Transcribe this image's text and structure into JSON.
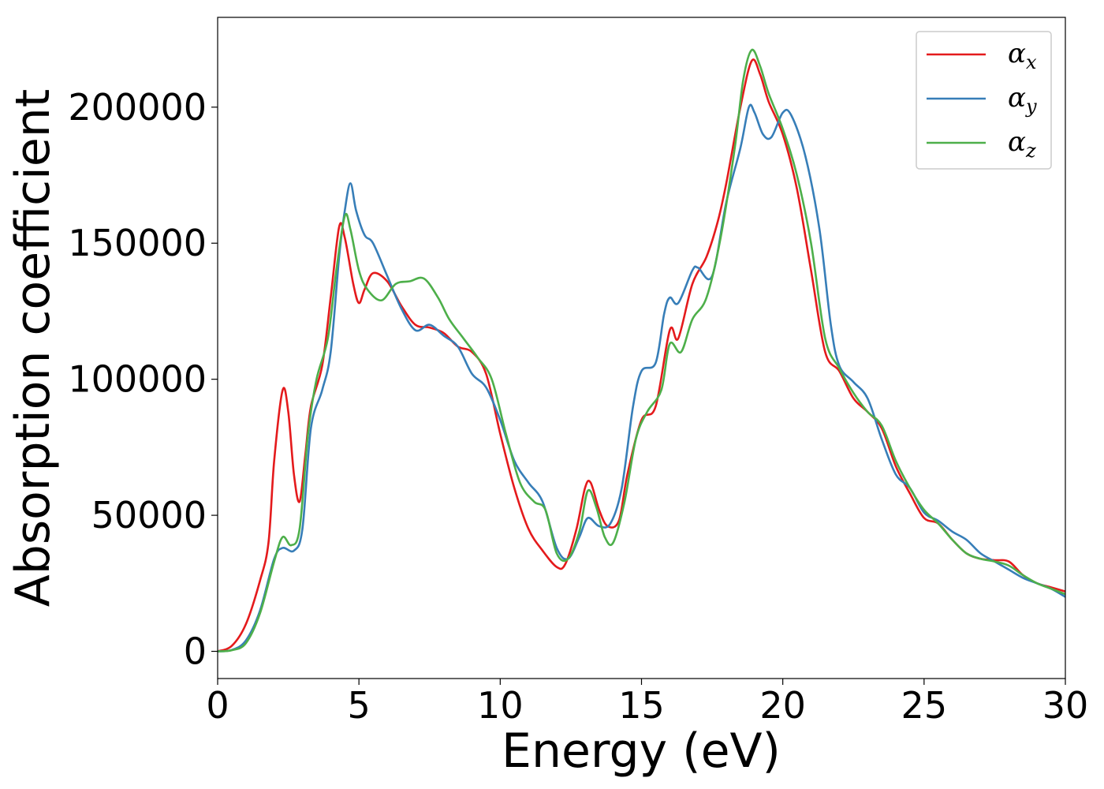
{
  "chart_data": {
    "type": "line",
    "xlabel": "Energy (eV)",
    "ylabel": "Absorption coefficient",
    "xlim": [
      0,
      30
    ],
    "ylim": [
      -10000,
      233000
    ],
    "xticks": [
      "0",
      "5",
      "10",
      "15",
      "20",
      "25",
      "30"
    ],
    "yticks": [
      "0",
      "50000",
      "100000",
      "150000",
      "200000"
    ],
    "grid": false,
    "legend_position": "top-right",
    "series": [
      {
        "name": "α_x",
        "legend_base": "α",
        "legend_sub": "x",
        "color": "#e41a1c",
        "points": [
          [
            0,
            0
          ],
          [
            0.5,
            2000
          ],
          [
            1,
            10000
          ],
          [
            1.5,
            26000
          ],
          [
            1.8,
            40000
          ],
          [
            2.0,
            70000
          ],
          [
            2.3,
            96000
          ],
          [
            2.5,
            88000
          ],
          [
            2.7,
            65000
          ],
          [
            2.9,
            55000
          ],
          [
            3.1,
            72000
          ],
          [
            3.3,
            90000
          ],
          [
            3.7,
            105000
          ],
          [
            4.0,
            130000
          ],
          [
            4.3,
            156000
          ],
          [
            4.5,
            152000
          ],
          [
            4.8,
            135000
          ],
          [
            5.0,
            128000
          ],
          [
            5.2,
            133000
          ],
          [
            5.5,
            139000
          ],
          [
            6.0,
            136000
          ],
          [
            6.5,
            127000
          ],
          [
            7.0,
            120000
          ],
          [
            7.5,
            119000
          ],
          [
            8.0,
            117000
          ],
          [
            8.5,
            112000
          ],
          [
            9.0,
            110000
          ],
          [
            9.5,
            102000
          ],
          [
            10.0,
            80000
          ],
          [
            10.5,
            60000
          ],
          [
            11.0,
            45000
          ],
          [
            11.5,
            37000
          ],
          [
            12.0,
            31000
          ],
          [
            12.3,
            32000
          ],
          [
            12.7,
            45000
          ],
          [
            13.0,
            60000
          ],
          [
            13.2,
            62000
          ],
          [
            13.5,
            52000
          ],
          [
            13.8,
            46000
          ],
          [
            14.2,
            48000
          ],
          [
            14.5,
            65000
          ],
          [
            15.0,
            85000
          ],
          [
            15.5,
            90000
          ],
          [
            16.0,
            118000
          ],
          [
            16.3,
            115000
          ],
          [
            16.8,
            135000
          ],
          [
            17.3,
            145000
          ],
          [
            17.7,
            158000
          ],
          [
            18.0,
            172000
          ],
          [
            18.5,
            200000
          ],
          [
            18.9,
            217000
          ],
          [
            19.2,
            212000
          ],
          [
            19.5,
            202000
          ],
          [
            20.0,
            190000
          ],
          [
            20.5,
            170000
          ],
          [
            21.0,
            140000
          ],
          [
            21.5,
            110000
          ],
          [
            22.0,
            103000
          ],
          [
            22.5,
            93000
          ],
          [
            23.0,
            88000
          ],
          [
            23.5,
            82000
          ],
          [
            24.0,
            68000
          ],
          [
            24.5,
            58000
          ],
          [
            25.0,
            49000
          ],
          [
            25.5,
            47000
          ],
          [
            26.0,
            41000
          ],
          [
            26.5,
            36000
          ],
          [
            27.0,
            34000
          ],
          [
            27.5,
            33500
          ],
          [
            28.0,
            33000
          ],
          [
            28.5,
            28000
          ],
          [
            29.0,
            25000
          ],
          [
            29.5,
            23500
          ],
          [
            30,
            22000
          ]
        ]
      },
      {
        "name": "α_y",
        "legend_base": "α",
        "legend_sub": "y",
        "color": "#377eb8",
        "points": [
          [
            0,
            0
          ],
          [
            0.5,
            500
          ],
          [
            1,
            4000
          ],
          [
            1.5,
            15000
          ],
          [
            2.0,
            34000
          ],
          [
            2.3,
            38000
          ],
          [
            2.7,
            37000
          ],
          [
            3.0,
            45000
          ],
          [
            3.3,
            82000
          ],
          [
            3.7,
            96000
          ],
          [
            4.0,
            110000
          ],
          [
            4.3,
            145000
          ],
          [
            4.5,
            162000
          ],
          [
            4.7,
            172000
          ],
          [
            4.9,
            162000
          ],
          [
            5.2,
            153000
          ],
          [
            5.5,
            150000
          ],
          [
            6.0,
            138000
          ],
          [
            6.5,
            126000
          ],
          [
            7.0,
            118000
          ],
          [
            7.5,
            120000
          ],
          [
            8.0,
            116000
          ],
          [
            8.5,
            112000
          ],
          [
            9.0,
            102000
          ],
          [
            9.5,
            97000
          ],
          [
            10.0,
            85000
          ],
          [
            10.5,
            70000
          ],
          [
            11.0,
            62000
          ],
          [
            11.5,
            55000
          ],
          [
            12.0,
            38000
          ],
          [
            12.4,
            34000
          ],
          [
            12.8,
            42000
          ],
          [
            13.1,
            49000
          ],
          [
            13.5,
            46000
          ],
          [
            13.9,
            47000
          ],
          [
            14.3,
            60000
          ],
          [
            14.7,
            90000
          ],
          [
            15.0,
            103000
          ],
          [
            15.5,
            106000
          ],
          [
            15.8,
            124000
          ],
          [
            16.0,
            130000
          ],
          [
            16.3,
            128000
          ],
          [
            16.8,
            140000
          ],
          [
            17.0,
            141000
          ],
          [
            17.5,
            138000
          ],
          [
            18.0,
            165000
          ],
          [
            18.5,
            185000
          ],
          [
            18.8,
            200000
          ],
          [
            19.0,
            198000
          ],
          [
            19.3,
            190000
          ],
          [
            19.6,
            189000
          ],
          [
            20.0,
            198000
          ],
          [
            20.3,
            197000
          ],
          [
            20.8,
            182000
          ],
          [
            21.3,
            155000
          ],
          [
            21.7,
            120000
          ],
          [
            22.0,
            105000
          ],
          [
            22.5,
            99000
          ],
          [
            23.0,
            93000
          ],
          [
            23.5,
            78000
          ],
          [
            24.0,
            65000
          ],
          [
            24.5,
            60000
          ],
          [
            25.0,
            51000
          ],
          [
            25.5,
            48000
          ],
          [
            26.0,
            44000
          ],
          [
            26.5,
            41000
          ],
          [
            27.0,
            36000
          ],
          [
            27.5,
            33000
          ],
          [
            28.0,
            30000
          ],
          [
            28.5,
            27000
          ],
          [
            29.0,
            25000
          ],
          [
            29.5,
            23000
          ],
          [
            30,
            20000
          ]
        ]
      },
      {
        "name": "α_z",
        "legend_base": "α",
        "legend_sub": "z",
        "color": "#4daf4a",
        "points": [
          [
            0,
            0
          ],
          [
            0.5,
            400
          ],
          [
            1,
            3000
          ],
          [
            1.5,
            14000
          ],
          [
            2.0,
            33000
          ],
          [
            2.3,
            42000
          ],
          [
            2.6,
            39000
          ],
          [
            2.9,
            45000
          ],
          [
            3.2,
            80000
          ],
          [
            3.5,
            100000
          ],
          [
            3.9,
            115000
          ],
          [
            4.2,
            140000
          ],
          [
            4.5,
            160000
          ],
          [
            4.7,
            155000
          ],
          [
            5.0,
            140000
          ],
          [
            5.3,
            133000
          ],
          [
            5.8,
            129000
          ],
          [
            6.3,
            135000
          ],
          [
            6.8,
            136000
          ],
          [
            7.3,
            137000
          ],
          [
            7.8,
            130000
          ],
          [
            8.2,
            122000
          ],
          [
            8.7,
            115000
          ],
          [
            9.2,
            108000
          ],
          [
            9.7,
            100000
          ],
          [
            10.2,
            80000
          ],
          [
            10.7,
            62000
          ],
          [
            11.2,
            55000
          ],
          [
            11.6,
            52000
          ],
          [
            12.0,
            36000
          ],
          [
            12.4,
            34000
          ],
          [
            12.8,
            44000
          ],
          [
            13.1,
            59000
          ],
          [
            13.4,
            53000
          ],
          [
            13.7,
            42000
          ],
          [
            14.0,
            40000
          ],
          [
            14.4,
            55000
          ],
          [
            14.8,
            78000
          ],
          [
            15.2,
            88000
          ],
          [
            15.7,
            96000
          ],
          [
            16.0,
            113000
          ],
          [
            16.4,
            110000
          ],
          [
            16.8,
            122000
          ],
          [
            17.3,
            130000
          ],
          [
            17.8,
            152000
          ],
          [
            18.3,
            185000
          ],
          [
            18.6,
            210000
          ],
          [
            18.9,
            221000
          ],
          [
            19.2,
            215000
          ],
          [
            19.5,
            205000
          ],
          [
            20.0,
            192000
          ],
          [
            20.5,
            175000
          ],
          [
            21.0,
            150000
          ],
          [
            21.5,
            115000
          ],
          [
            22.0,
            104000
          ],
          [
            22.5,
            95000
          ],
          [
            23.0,
            88000
          ],
          [
            23.5,
            83000
          ],
          [
            24.0,
            70000
          ],
          [
            24.5,
            60000
          ],
          [
            25.0,
            52000
          ],
          [
            25.5,
            47000
          ],
          [
            26.0,
            41000
          ],
          [
            26.5,
            36000
          ],
          [
            27.0,
            34000
          ],
          [
            27.5,
            33000
          ],
          [
            28.0,
            31500
          ],
          [
            28.5,
            28000
          ],
          [
            29.0,
            25000
          ],
          [
            29.5,
            23000
          ],
          [
            30,
            21000
          ]
        ]
      }
    ]
  }
}
